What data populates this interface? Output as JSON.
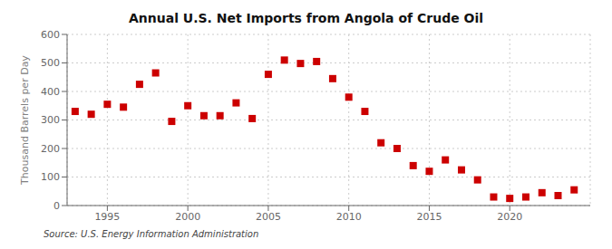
{
  "chart_data": {
    "type": "scatter",
    "title": "Annual U.S. Net Imports from Angola of Crude Oil",
    "ylabel": "Thousand Barrels per Day",
    "source": "Source: U.S. Energy Information Administration",
    "x": [
      1993,
      1994,
      1995,
      1996,
      1997,
      1998,
      1999,
      2000,
      2001,
      2002,
      2003,
      2004,
      2005,
      2006,
      2007,
      2008,
      2009,
      2010,
      2011,
      2012,
      2013,
      2014,
      2015,
      2016,
      2017,
      2018,
      2019,
      2020,
      2021,
      2022,
      2023,
      2024
    ],
    "values": [
      330,
      320,
      355,
      345,
      425,
      465,
      295,
      350,
      315,
      315,
      360,
      305,
      460,
      510,
      498,
      505,
      445,
      380,
      330,
      220,
      200,
      140,
      120,
      160,
      125,
      90,
      30,
      25,
      30,
      45,
      35,
      55
    ],
    "color": "#cc0000",
    "marker": "square",
    "xlim": [
      1992.5,
      2025
    ],
    "xticks": [
      1995,
      2000,
      2005,
      2010,
      2015,
      2020
    ],
    "ylim": [
      0,
      600
    ],
    "yticks": [
      0,
      100,
      200,
      300,
      400,
      500,
      600
    ],
    "grid": true
  }
}
